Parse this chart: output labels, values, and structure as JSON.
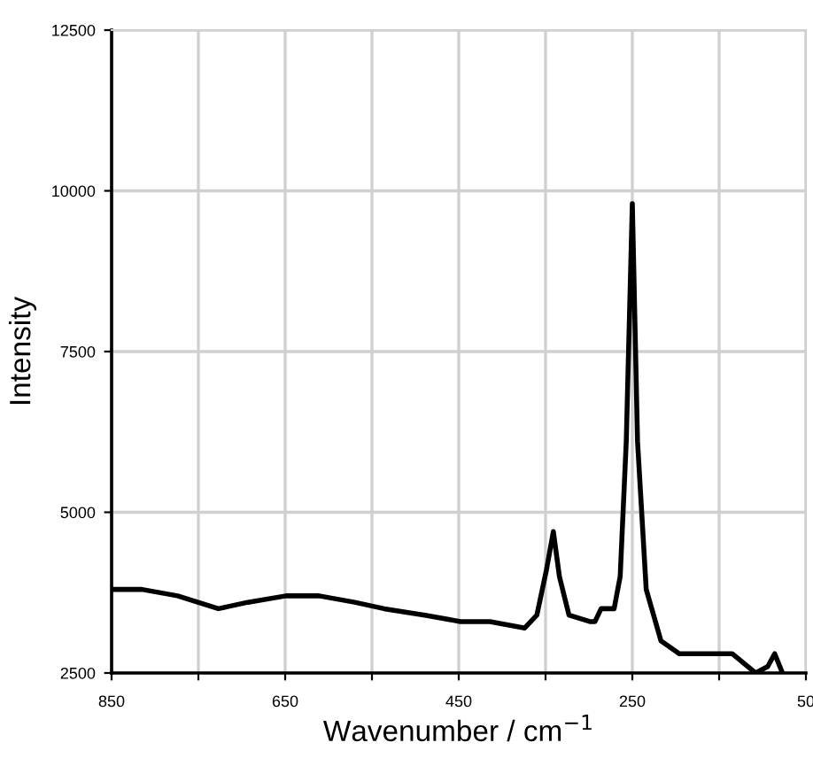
{
  "chart_data": {
    "type": "line",
    "xlabel": "Wavenumber / cm$^{−1}$",
    "ylabel": "Intensity",
    "x": [
      850,
      815,
      774,
      727,
      693,
      649,
      611,
      570,
      536,
      489,
      448,
      414,
      374,
      360,
      349,
      341,
      334,
      323,
      299,
      293,
      286,
      271,
      264,
      257,
      250,
      244,
      234,
      217,
      196,
      169,
      135,
      108,
      94,
      86,
      77
    ],
    "series": [
      {
        "color": "#000000",
        "values": [
          3800,
          3800,
          3700,
          3500,
          3600,
          3700,
          3700,
          3600,
          3500,
          3400,
          3300,
          3300,
          3200,
          3400,
          4100,
          4700,
          4000,
          3400,
          3300,
          3300,
          3500,
          3500,
          4000,
          6100,
          9800,
          6100,
          3800,
          3000,
          2800,
          2800,
          2800,
          2500,
          2600,
          2800,
          2500
        ]
      }
    ],
    "xlim": [
      850,
      50
    ],
    "xticks": [
      850,
      {
        "value": 750,
        "label": null
      },
      650,
      {
        "value": 550,
        "label": null
      },
      450,
      {
        "value": 350,
        "label": null
      },
      250,
      {
        "value": 150,
        "label": null
      },
      50
    ],
    "ylim": [
      2500,
      12500
    ],
    "yticks": [
      2500,
      5000,
      7500,
      10000,
      12500
    ],
    "grid": true,
    "marker": "none",
    "line_style": "solid"
  }
}
